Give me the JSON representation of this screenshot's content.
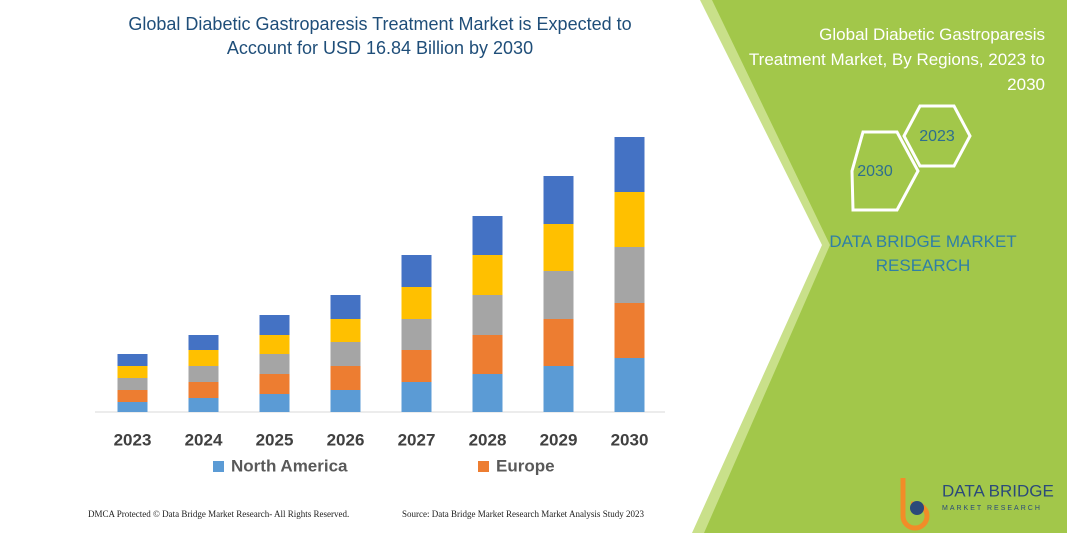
{
  "chart_data": {
    "type": "stacked-bar",
    "title": "Global Diabetic Gastroparesis Treatment Market is Expected to Account for USD 16.84 Billion by 2030",
    "categories": [
      "2023",
      "2024",
      "2025",
      "2026",
      "2027",
      "2028",
      "2029",
      "2030"
    ],
    "series": [
      {
        "name": "North America",
        "color": "#5b9bd5",
        "values": [
          10,
          14,
          18,
          22,
          30,
          38,
          46,
          54
        ]
      },
      {
        "name": "Europe",
        "color": "#ed7d31",
        "values": [
          12,
          16,
          20,
          24,
          32,
          39,
          47,
          55
        ]
      },
      {
        "color": "#a5a5a5",
        "values": [
          12,
          16,
          20,
          24,
          31,
          40,
          48,
          56
        ]
      },
      {
        "color": "#ffc000",
        "values": [
          12,
          16,
          19,
          23,
          32,
          40,
          47,
          55
        ]
      },
      {
        "color": "#4472c4",
        "values": [
          12,
          15,
          20,
          24,
          32,
          39,
          48,
          55
        ]
      }
    ]
  },
  "side_panel": {
    "title": "Global Diabetic Gastroparesis Treatment Market, By Regions, 2023 to 2030",
    "hex_small": "2023",
    "hex_large": "2030",
    "brand": "DATA BRIDGE MARKET RESEARCH"
  },
  "footer": {
    "left": "DMCA Protected © Data Bridge Market Research-  All Rights Reserved.",
    "right": "Source: Data Bridge Market Research  Market Analysis Study 2023"
  },
  "logo": {
    "name": "DATA BRIDGE",
    "tagline": "MARKET RESEARCH"
  }
}
